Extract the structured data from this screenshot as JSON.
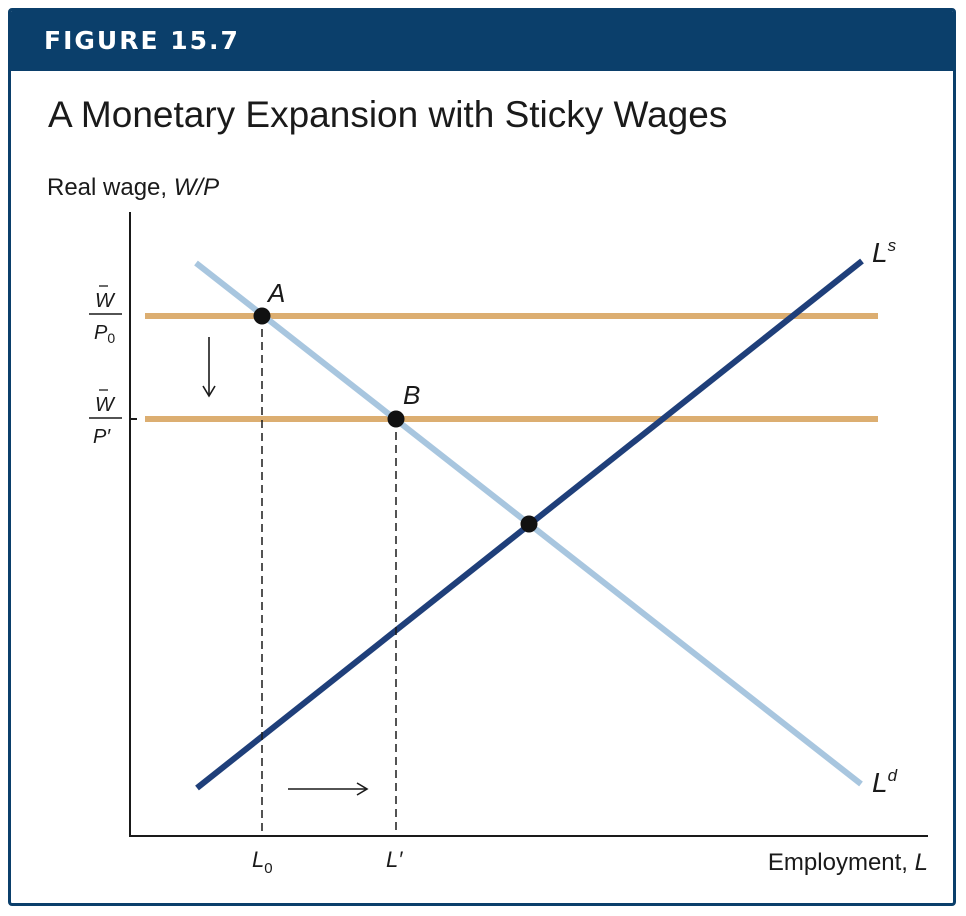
{
  "figure": {
    "label": "FIGURE 15.7",
    "title": "A Monetary Expansion with Sticky Wages"
  },
  "axes": {
    "y_label_plain": "Real wage, ",
    "y_label_italic": "W/P",
    "x_label_plain": "Employment, ",
    "x_label_italic": "L"
  },
  "curves": {
    "supply_base": "L",
    "supply_sup": "s",
    "demand_base": "L",
    "demand_sup": "d"
  },
  "points": {
    "a": "A",
    "b": "B"
  },
  "y_ticks": {
    "top_num": "W",
    "top_den": "P",
    "top_den_sub": "0",
    "bottom_num": "W",
    "bottom_den": "P′"
  },
  "x_ticks": {
    "l0_base": "L",
    "l0_sub": "0",
    "lprime": "L′"
  },
  "colors": {
    "banner": "#0b3f6b",
    "labor_supply": "#1f3f7a",
    "labor_demand": "#a8c6df",
    "wage_lines": "#dcae71",
    "point": "#111111"
  }
}
